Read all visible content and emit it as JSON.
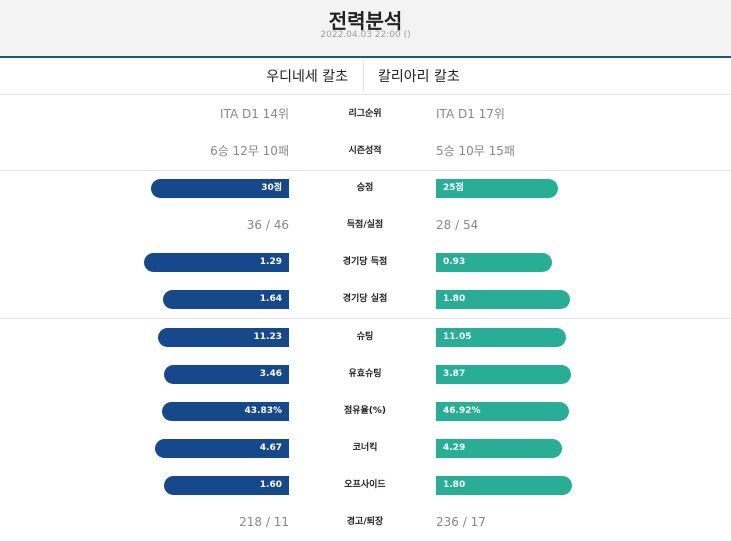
{
  "header": {
    "title": "전력분석",
    "datetime": "2022.04.03 22:00 ()"
  },
  "teams": {
    "home": "우디네세 칼초",
    "away": "칼리아리 칼초"
  },
  "colors": {
    "home_bar": "#16488c",
    "away_bar": "#27ae94"
  },
  "stats": [
    {
      "label": "리그순위",
      "type": "text",
      "home": "ITA D1 14위",
      "away": "ITA D1 17위"
    },
    {
      "label": "시즌성적",
      "type": "text",
      "home": "6승 12무 10패",
      "away": "5승 10무 15패"
    },
    {
      "label": "승점",
      "type": "bar",
      "home": "30점",
      "away": "25점",
      "home_value": 30,
      "away_value": 25
    },
    {
      "label": "득점/실점",
      "type": "text",
      "home": "36 / 46",
      "away": "28 / 54"
    },
    {
      "label": "경기당 득점",
      "type": "bar",
      "home": "1.29",
      "away": "0.93",
      "home_value": 1.29,
      "away_value": 0.93
    },
    {
      "label": "경기당 실점",
      "type": "bar",
      "home": "1.64",
      "away": "1.80",
      "home_value": 1.64,
      "away_value": 1.8
    },
    {
      "label": "슈팅",
      "type": "bar",
      "home": "11.23",
      "away": "11.05",
      "home_value": 11.23,
      "away_value": 11.05
    },
    {
      "label": "유효슈팅",
      "type": "bar",
      "home": "3.46",
      "away": "3.87",
      "home_value": 3.46,
      "away_value": 3.87
    },
    {
      "label": "점유율(%)",
      "type": "bar",
      "home": "43.83%",
      "away": "46.92%",
      "home_value": 43.83,
      "away_value": 46.92
    },
    {
      "label": "코너킥",
      "type": "bar",
      "home": "4.67",
      "away": "4.29",
      "home_value": 4.67,
      "away_value": 4.29
    },
    {
      "label": "오프사이드",
      "type": "bar",
      "home": "1.60",
      "away": "1.80",
      "home_value": 1.6,
      "away_value": 1.8
    },
    {
      "label": "경고/퇴장",
      "type": "text",
      "home": "218 / 11",
      "away": "236 / 17"
    }
  ]
}
